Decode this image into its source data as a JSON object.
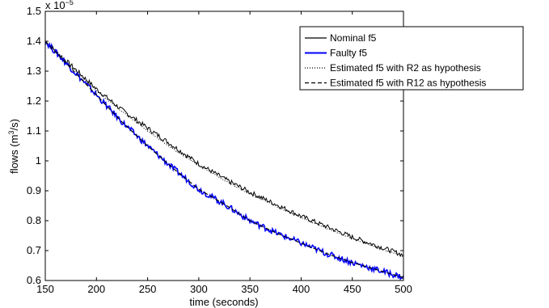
{
  "chart_data": {
    "type": "line",
    "title": "",
    "xlabel": "time (seconds)",
    "ylabel_parts": {
      "pre": "flows (m",
      "sup": "3",
      "post": "/s)"
    },
    "y_multiplier": {
      "base": "x 10",
      "exp": "−5"
    },
    "xlim": [
      150,
      500
    ],
    "ylim": [
      0.6,
      1.5
    ],
    "x_ticks": [
      150,
      200,
      250,
      300,
      350,
      400,
      450,
      500
    ],
    "x_tick_labels": [
      "150",
      "200",
      "250",
      "300",
      "350",
      "400",
      "450",
      "500"
    ],
    "y_ticks": [
      0.6,
      0.7,
      0.8,
      0.9,
      1.0,
      1.1,
      1.2,
      1.3,
      1.4,
      1.5
    ],
    "y_tick_labels": [
      "0.6",
      "0.7",
      "0.8",
      "0.9",
      "1",
      "1.1",
      "1.2",
      "1.3",
      "1.4",
      "1.5"
    ],
    "grid": false,
    "legend_position": "top-right",
    "series": [
      {
        "name": "Nominal f5",
        "color": "#000000",
        "style": "solid",
        "x": [
          150,
          175,
          200,
          225,
          250,
          275,
          300,
          325,
          350,
          375,
          400,
          425,
          450,
          475,
          500
        ],
        "y": [
          1.4,
          1.32,
          1.24,
          1.17,
          1.11,
          1.05,
          0.99,
          0.94,
          0.895,
          0.855,
          0.815,
          0.78,
          0.745,
          0.715,
          0.685
        ]
      },
      {
        "name": "Faulty f5",
        "color": "#0000ff",
        "style": "solid",
        "x": [
          150,
          175,
          200,
          225,
          250,
          275,
          300,
          325,
          350,
          375,
          400,
          425,
          450,
          475,
          500
        ],
        "y": [
          1.4,
          1.31,
          1.22,
          1.13,
          1.05,
          0.975,
          0.905,
          0.855,
          0.8,
          0.76,
          0.725,
          0.69,
          0.66,
          0.635,
          0.61
        ]
      },
      {
        "name": "Estimated f5 with R2 as hypothesis",
        "color": "#000000",
        "style": "dotted",
        "x": [
          150,
          175,
          200,
          225,
          250,
          275,
          300,
          325,
          350,
          375,
          400,
          425,
          450,
          475,
          500
        ],
        "y": [
          1.4,
          1.315,
          1.235,
          1.165,
          1.1,
          1.04,
          0.985,
          0.935,
          0.89,
          0.85,
          0.81,
          0.775,
          0.74,
          0.71,
          0.68
        ]
      },
      {
        "name": "Estimated f5 with R12 as hypothesis",
        "color": "#000000",
        "style": "dashed",
        "x": [
          150,
          175,
          200,
          225,
          250,
          275,
          300,
          325,
          350,
          375,
          400,
          425,
          450,
          475,
          500
        ],
        "y": [
          1.4,
          1.31,
          1.22,
          1.13,
          1.05,
          0.975,
          0.905,
          0.855,
          0.8,
          0.76,
          0.725,
          0.69,
          0.66,
          0.635,
          0.61
        ]
      }
    ]
  }
}
